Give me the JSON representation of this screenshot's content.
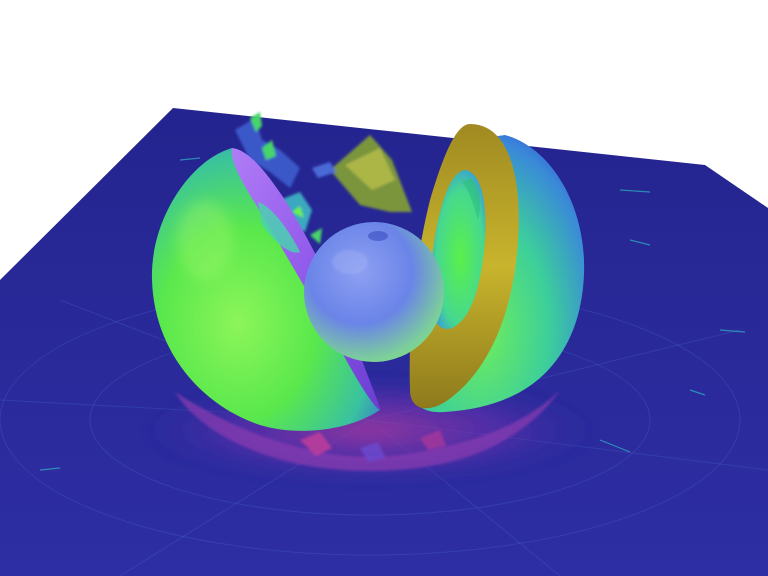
{
  "scene": {
    "background_color": "#ffffff",
    "colors": {
      "ground": "#2a2a9c",
      "ground_dark": "#1c1c86",
      "ground_line": "#4b60c8",
      "shell_green": "#66f24a",
      "shell_cyan": "#3ec8d6",
      "shell_blue": "#3a5fe0",
      "cut_face_purple": "#9a5cf0",
      "rim_yellow": "#c9b42a",
      "rim_olive": "#8a7a1c",
      "core_blue": "#5a78e8",
      "core_green": "#7fe07a",
      "shadow_magenta": "#a23a9a",
      "debris_green": "#44d46a"
    },
    "objects": [
      "ground-plane",
      "left-hemisphere-shell",
      "right-hemisphere-shell",
      "inner-core-sphere",
      "debris-particles"
    ]
  }
}
